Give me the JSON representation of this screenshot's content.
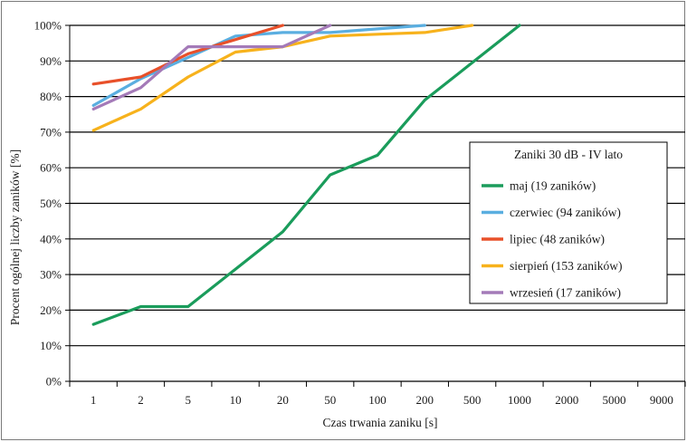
{
  "chart_data": {
    "type": "line",
    "title": "",
    "xlabel": "Czas trwania zaniku [s]",
    "ylabel": "Procent ogólnej liczby zaników [%]",
    "categories": [
      "1",
      "2",
      "5",
      "10",
      "20",
      "50",
      "100",
      "200",
      "500",
      "1000",
      "2000",
      "5000",
      "9000"
    ],
    "y_ticks": [
      "0%",
      "10%",
      "20%",
      "30%",
      "40%",
      "50%",
      "60%",
      "70%",
      "80%",
      "90%",
      "100%"
    ],
    "ylim": [
      0,
      100
    ],
    "grid": "horizontal",
    "legend": {
      "title": "Zaniki 30 dB  -  IV lato",
      "placement": "right-center"
    },
    "series": [
      {
        "name": "maj (19 zaników)",
        "color": "#1a9c5b",
        "values": [
          16,
          21,
          21,
          31.5,
          42,
          58,
          63.5,
          79,
          89.5,
          100,
          null,
          null,
          null
        ]
      },
      {
        "name": "czerwiec (94 zaników)",
        "color": "#5aaee0",
        "values": [
          77.5,
          85,
          91,
          97,
          98,
          98,
          99,
          100,
          null,
          null,
          null,
          null,
          null
        ]
      },
      {
        "name": "lipiec (48 zaników)",
        "color": "#e8502a",
        "values": [
          83.5,
          85.5,
          92,
          96,
          100,
          null,
          null,
          null,
          null,
          null,
          null,
          null,
          null
        ]
      },
      {
        "name": "sierpień (153 zaników)",
        "color": "#f7b21c",
        "values": [
          70.5,
          76.5,
          85.5,
          92.5,
          94,
          97,
          97.5,
          98,
          100,
          null,
          null,
          null,
          null
        ]
      },
      {
        "name": "wrzesień (17 zaników)",
        "color": "#a47ab8",
        "values": [
          76.5,
          82.5,
          94,
          94,
          94,
          100,
          null,
          null,
          null,
          null,
          null,
          null,
          null
        ]
      }
    ]
  }
}
